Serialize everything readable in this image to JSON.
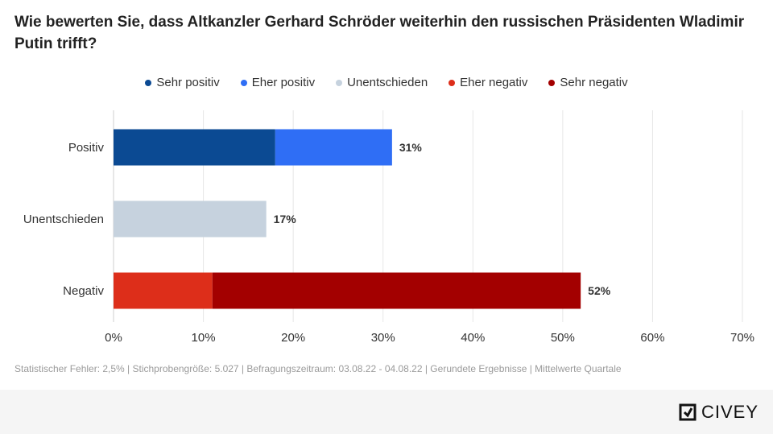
{
  "chart_data": {
    "type": "bar",
    "stacked": true,
    "orientation": "horizontal",
    "title": "Wie bewerten Sie, dass Altkanzler Gerhard Schröder weiterhin den russischen Präsidenten Wladimir Putin trifft?",
    "categories": [
      "Positiv",
      "Unentschieden",
      "Negativ"
    ],
    "series": [
      {
        "name": "Sehr positiv",
        "color": "#0b4a93",
        "values": [
          18,
          0,
          0
        ]
      },
      {
        "name": "Eher positiv",
        "color": "#2f6ef5",
        "values": [
          13,
          0,
          0
        ]
      },
      {
        "name": "Unentschieden",
        "color": "#c6d2de",
        "values": [
          0,
          17,
          0
        ]
      },
      {
        "name": "Eher negativ",
        "color": "#dd2e1a",
        "values": [
          0,
          0,
          11
        ]
      },
      {
        "name": "Sehr negativ",
        "color": "#a30000",
        "values": [
          0,
          0,
          41
        ]
      }
    ],
    "totals": [
      "31%",
      "17%",
      "52%"
    ],
    "xlim": [
      0,
      70
    ],
    "xticks": [
      "0%",
      "10%",
      "20%",
      "30%",
      "40%",
      "50%",
      "60%",
      "70%"
    ],
    "xlabel": "",
    "ylabel": "",
    "grid": true,
    "legend_position": "top"
  },
  "footnote": "Statistischer Fehler: 2,5% | Stichprobengröße: 5.027 | Befragungszeitraum: 03.08.22 - 04.08.22 | Gerundete Ergebnisse | Mittelwerte Quartale",
  "brand": {
    "name": "CIVEY"
  }
}
